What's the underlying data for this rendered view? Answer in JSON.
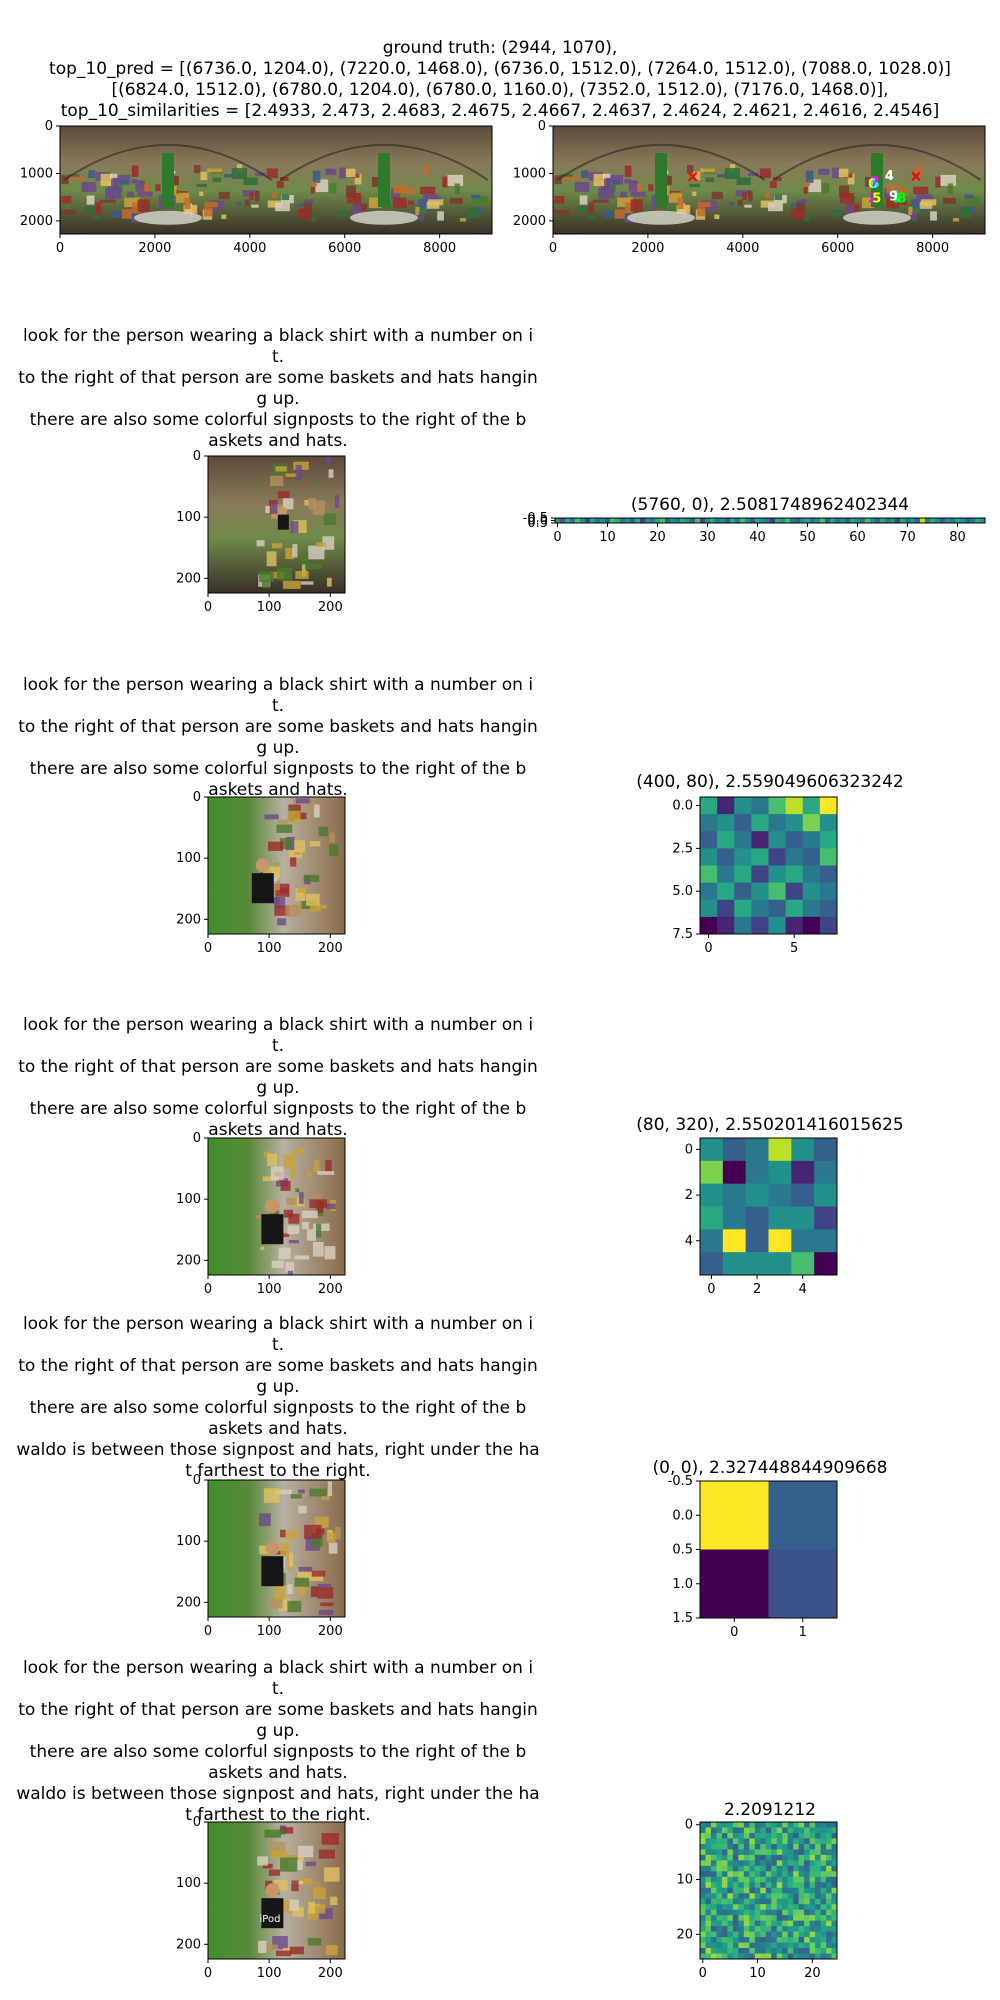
{
  "figure": {
    "title_lines": [
      "ground truth: (2944, 1070),",
      "top_10_pred = [(6736.0, 1204.0), (7220.0, 1468.0), (6736.0, 1512.0), (7264.0, 1512.0), (7088.0, 1028.0)]",
      "[(6824.0, 1512.0), (6780.0, 1204.0), (6780.0, 1160.0), (7352.0, 1512.0), (7176.0, 1468.0)],",
      "top_10_similarities = [2.4933, 2.473, 2.4683, 2.4675, 2.4667, 2.4637, 2.4624, 2.4621, 2.4616, 2.4546]"
    ]
  },
  "colors": {
    "viridis_dark": "#440154",
    "viridis_blue": "#3b528b",
    "viridis_teal": "#21918c",
    "viridis_green": "#5ec962",
    "viridis_yellow": "#fde725",
    "pred_marker_colors": [
      "#ff0000",
      "#ffff00",
      "#00ffff",
      "#ff00ff",
      "#00ff00",
      "#ffffff"
    ]
  },
  "chart_data": [
    {
      "type": "image",
      "description_tag": "panorama",
      "xticks": [
        "0",
        "2000",
        "4000",
        "6000",
        "8000"
      ],
      "yticks": [
        "0",
        "1000",
        "2000"
      ],
      "xlim": [
        0,
        9104
      ],
      "ylim": [
        2276,
        0
      ]
    },
    {
      "type": "image",
      "description_tag": "panorama-with-predictions",
      "xticks": [
        "0",
        "2000",
        "4000",
        "6000",
        "8000"
      ],
      "yticks": [
        "0",
        "1000",
        "2000"
      ],
      "xlim": [
        0,
        9104
      ],
      "ylim": [
        2276,
        0
      ],
      "ground_truth": {
        "x": 2944,
        "y": 1070
      },
      "predictions": [
        {
          "label": "0",
          "x": 6736.0,
          "y": 1204.0
        },
        {
          "label": "1",
          "x": 7220.0,
          "y": 1468.0
        },
        {
          "label": "2",
          "x": 6736.0,
          "y": 1512.0
        },
        {
          "label": "3",
          "x": 7264.0,
          "y": 1512.0
        },
        {
          "label": "4",
          "x": 7088.0,
          "y": 1028.0
        },
        {
          "label": "5",
          "x": 6824.0,
          "y": 1512.0
        },
        {
          "label": "6",
          "x": 6780.0,
          "y": 1204.0
        },
        {
          "label": "7",
          "x": 6780.0,
          "y": 1160.0
        },
        {
          "label": "8",
          "x": 7352.0,
          "y": 1512.0
        },
        {
          "label": "9",
          "x": 7176.0,
          "y": 1468.0
        }
      ]
    }
  ],
  "rows": [
    {
      "caption_lines": [
        "look for the person wearing a black shirt with a number on i",
        "t.",
        "to the right of that person are some baskets and hats hangin",
        "g up.",
        "there are also some colorful signposts to the right of the b",
        "askets and hats."
      ],
      "image": {
        "xticks": [
          "0",
          "100",
          "200"
        ],
        "yticks": [
          "0",
          "100",
          "200"
        ],
        "extent": 224
      },
      "heatmap": {
        "title": "(5760, 0), 2.5081748962402344",
        "rows": 1,
        "cols": 86,
        "xticks": [
          "0",
          "10",
          "20",
          "30",
          "40",
          "50",
          "60",
          "70",
          "80"
        ],
        "yticks": [
          "-0.5",
          "0.0",
          "0.5"
        ],
        "values": [
          [
            0.5,
            0.3,
            0.6,
            0.4,
            0.7,
            0.5,
            0.2,
            0.6,
            0.4,
            0.5,
            0.3,
            0.7,
            0.6,
            0.4,
            0.5,
            0.3,
            0.6,
            0.2,
            0.5,
            0.4,
            0.6,
            0.7,
            0.3,
            0.5,
            0.4,
            0.6,
            0.5,
            0.3,
            0.7,
            0.2,
            0.5,
            0.6,
            0.4,
            0.5,
            0.3,
            0.6,
            0.4,
            0.7,
            0.5,
            0.3,
            0.6,
            0.5,
            0.4,
            0.2,
            0.6,
            0.5,
            0.7,
            0.4,
            0.3,
            0.5,
            0.6,
            0.4,
            0.5,
            0.7,
            0.3,
            0.6,
            0.4,
            0.5,
            0.3,
            0.6,
            0.5,
            0.4,
            0.7,
            0.5,
            0.3,
            0.6,
            0.4,
            0.5,
            0.2,
            0.6,
            0.4,
            0.5,
            0.3,
            0.9,
            0.4,
            0.6,
            0.5,
            0.3,
            0.5,
            0.4,
            0.6,
            0.5,
            0.3,
            0.4,
            0.6,
            0.5
          ]
        ]
      }
    },
    {
      "caption_lines": [
        "look for the person wearing a black shirt with a number on i",
        "t.",
        "to the right of that person are some baskets and hats hangin",
        "g up.",
        "there are also some colorful signposts to the right of the b",
        "askets and hats."
      ],
      "image": {
        "xticks": [
          "0",
          "100",
          "200"
        ],
        "yticks": [
          "0",
          "100",
          "200"
        ],
        "extent": 224
      },
      "heatmap": {
        "title": "(400, 80), 2.559049606323242",
        "rows": 8,
        "cols": 8,
        "xticks": [
          "0",
          "5"
        ],
        "yticks": [
          "0.0",
          "2.5",
          "5.0",
          "7.5"
        ],
        "values": [
          [
            0.6,
            0.1,
            0.5,
            0.4,
            0.7,
            0.9,
            0.6,
            1.0
          ],
          [
            0.4,
            0.5,
            0.3,
            0.6,
            0.4,
            0.5,
            0.8,
            0.5
          ],
          [
            0.3,
            0.6,
            0.4,
            0.1,
            0.5,
            0.3,
            0.4,
            0.6
          ],
          [
            0.5,
            0.3,
            0.5,
            0.6,
            0.2,
            0.4,
            0.3,
            0.7
          ],
          [
            0.7,
            0.4,
            0.6,
            0.2,
            0.5,
            0.6,
            0.4,
            0.3
          ],
          [
            0.4,
            0.6,
            0.3,
            0.5,
            0.7,
            0.2,
            0.5,
            0.4
          ],
          [
            0.5,
            0.2,
            0.6,
            0.4,
            0.3,
            0.6,
            0.4,
            0.3
          ],
          [
            0.0,
            0.1,
            0.4,
            0.2,
            0.5,
            0.1,
            0.0,
            0.2
          ]
        ]
      }
    },
    {
      "caption_lines": [
        "look for the person wearing a black shirt with a number on i",
        "t.",
        "to the right of that person are some baskets and hats hangin",
        "g up.",
        "there are also some colorful signposts to the right of the b",
        "askets and hats."
      ],
      "image": {
        "xticks": [
          "0",
          "100",
          "200"
        ],
        "yticks": [
          "0",
          "100",
          "200"
        ],
        "extent": 224
      },
      "heatmap": {
        "title": "(80, 320), 2.550201416015625",
        "rows": 6,
        "cols": 6,
        "xticks": [
          "0",
          "2",
          "4"
        ],
        "yticks": [
          "0",
          "2",
          "4"
        ],
        "values": [
          [
            0.5,
            0.3,
            0.4,
            0.9,
            0.5,
            0.3
          ],
          [
            0.8,
            0.0,
            0.4,
            0.5,
            0.1,
            0.4
          ],
          [
            0.5,
            0.4,
            0.5,
            0.4,
            0.3,
            0.5
          ],
          [
            0.6,
            0.4,
            0.3,
            0.5,
            0.5,
            0.2
          ],
          [
            0.4,
            1.0,
            0.3,
            1.0,
            0.4,
            0.4
          ],
          [
            0.3,
            0.5,
            0.5,
            0.5,
            0.7,
            0.0
          ]
        ]
      }
    },
    {
      "caption_lines": [
        "look for the person wearing a black shirt with a number on i",
        "t.",
        "to the right of that person are some baskets and hats hangin",
        "g up.",
        "there are also some colorful signposts to the right of the b",
        "askets and hats.",
        "waldo is between those signpost and hats, right under the ha",
        "t farthest to the right."
      ],
      "image": {
        "xticks": [
          "0",
          "100",
          "200"
        ],
        "yticks": [
          "0",
          "100",
          "200"
        ],
        "extent": 224
      },
      "heatmap": {
        "title": "(0, 0), 2.327448844909668",
        "rows": 2,
        "cols": 2,
        "xticks": [
          "0",
          "1"
        ],
        "yticks": [
          "-0.5",
          "0.0",
          "0.5",
          "1.0",
          "1.5"
        ],
        "values": [
          [
            1.0,
            0.3
          ],
          [
            0.0,
            0.25
          ]
        ]
      }
    },
    {
      "caption_lines": [
        "look for the person wearing a black shirt with a number on i",
        "t.",
        "to the right of that person are some baskets and hats hangin",
        "g up.",
        "there are also some colorful signposts to the right of the b",
        "askets and hats.",
        "waldo is between those signpost and hats, right under the ha",
        "t farthest to the right."
      ],
      "image": {
        "xticks": [
          "0",
          "100",
          "200"
        ],
        "yticks": [
          "0",
          "100",
          "200"
        ],
        "extent": 224
      },
      "heatmap": {
        "title": "2.2091212",
        "rows": 25,
        "cols": 25,
        "xticks": [
          "0",
          "10",
          "20"
        ],
        "yticks": [
          "0",
          "10",
          "20"
        ],
        "values": "generated"
      }
    }
  ]
}
